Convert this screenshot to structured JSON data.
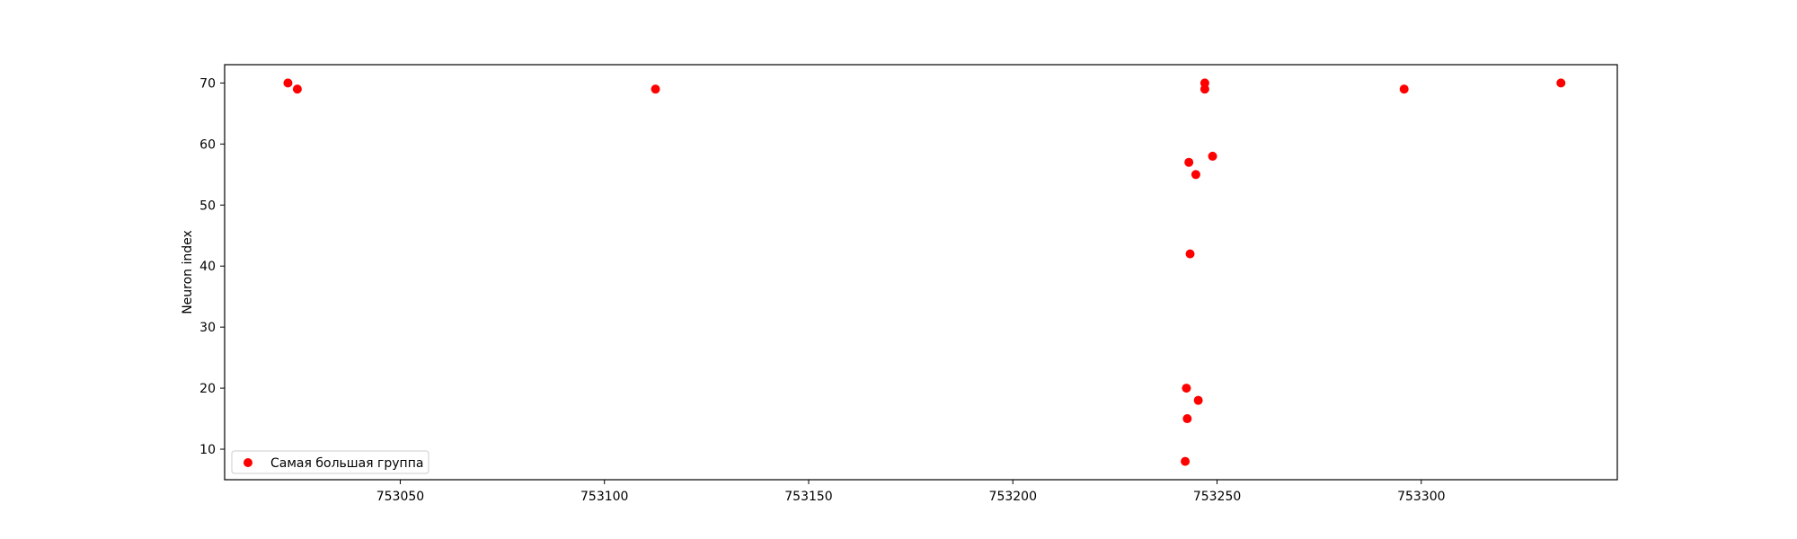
{
  "chart_data": {
    "type": "scatter",
    "ylabel": "Neuron index",
    "xlim": [
      753007,
      753348
    ],
    "ylim": [
      5,
      73
    ],
    "xticks": [
      753050,
      753100,
      753150,
      753200,
      753250,
      753300
    ],
    "yticks": [
      10,
      20,
      30,
      40,
      50,
      60,
      70
    ],
    "grid": false,
    "legend_position": "lower-left",
    "series": [
      {
        "name": "Самая большая группа",
        "color": "#ff0000",
        "points": [
          {
            "x": 753022.5,
            "y": 70
          },
          {
            "x": 753024.8,
            "y": 69
          },
          {
            "x": 753112.5,
            "y": 69
          },
          {
            "x": 753242.2,
            "y": 8
          },
          {
            "x": 753242.5,
            "y": 20
          },
          {
            "x": 753242.7,
            "y": 15
          },
          {
            "x": 753243.1,
            "y": 57
          },
          {
            "x": 753243.4,
            "y": 42
          },
          {
            "x": 753244.8,
            "y": 55
          },
          {
            "x": 753245.4,
            "y": 18
          },
          {
            "x": 753247.0,
            "y": 70
          },
          {
            "x": 753247.0,
            "y": 69
          },
          {
            "x": 753248.9,
            "y": 58
          },
          {
            "x": 753295.8,
            "y": 69
          },
          {
            "x": 753334.2,
            "y": 70
          }
        ]
      }
    ]
  }
}
